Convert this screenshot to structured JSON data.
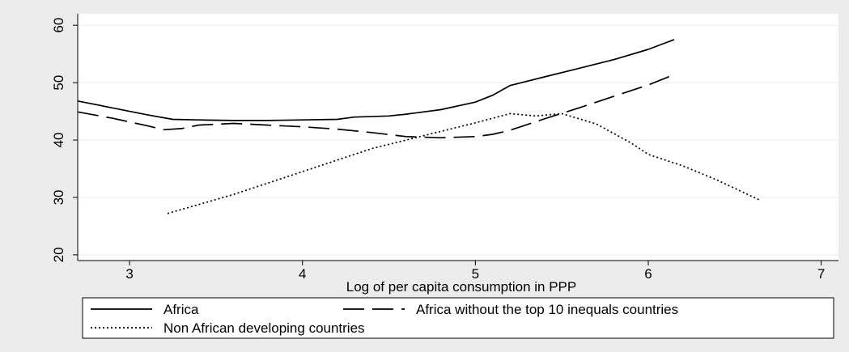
{
  "chart_data": {
    "type": "line",
    "title": "",
    "xlabel": "Log of per capita  consumption in PPP",
    "ylabel": "",
    "xlim": [
      2.7,
      7.1
    ],
    "ylim": [
      19,
      62
    ],
    "x_ticks": [
      3,
      4,
      5,
      6,
      7
    ],
    "y_ticks": [
      20,
      30,
      40,
      50,
      60
    ],
    "grid": "horizontal",
    "legend_position": "bottom",
    "series": [
      {
        "name": "Africa",
        "style": "solid",
        "color": "#000000",
        "points": [
          [
            2.7,
            46.8
          ],
          [
            2.9,
            45.6
          ],
          [
            3.1,
            44.4
          ],
          [
            3.25,
            43.6
          ],
          [
            3.4,
            43.5
          ],
          [
            3.6,
            43.4
          ],
          [
            3.8,
            43.4
          ],
          [
            4.0,
            43.5
          ],
          [
            4.2,
            43.6
          ],
          [
            4.3,
            44.0
          ],
          [
            4.5,
            44.2
          ],
          [
            4.6,
            44.5
          ],
          [
            4.8,
            45.3
          ],
          [
            5.0,
            46.6
          ],
          [
            5.1,
            47.8
          ],
          [
            5.2,
            49.5
          ],
          [
            5.4,
            51.0
          ],
          [
            5.6,
            52.5
          ],
          [
            5.8,
            54.0
          ],
          [
            6.0,
            55.8
          ],
          [
            6.15,
            57.5
          ]
        ]
      },
      {
        "name": "Africa without the top 10 inequals countries",
        "style": "long-dash",
        "color": "#000000",
        "points": [
          [
            2.7,
            44.9
          ],
          [
            2.9,
            43.8
          ],
          [
            3.1,
            42.5
          ],
          [
            3.2,
            41.8
          ],
          [
            3.3,
            42.0
          ],
          [
            3.4,
            42.6
          ],
          [
            3.6,
            42.9
          ],
          [
            3.8,
            42.6
          ],
          [
            4.0,
            42.3
          ],
          [
            4.2,
            41.9
          ],
          [
            4.4,
            41.3
          ],
          [
            4.6,
            40.6
          ],
          [
            4.8,
            40.4
          ],
          [
            5.0,
            40.6
          ],
          [
            5.1,
            41.0
          ],
          [
            5.2,
            41.7
          ],
          [
            5.4,
            43.7
          ],
          [
            5.6,
            45.6
          ],
          [
            5.8,
            47.6
          ],
          [
            6.0,
            49.6
          ],
          [
            6.15,
            51.4
          ]
        ]
      },
      {
        "name": "Non African developing countries",
        "style": "dotted",
        "color": "#000000",
        "points": [
          [
            3.22,
            27.2
          ],
          [
            3.6,
            30.5
          ],
          [
            4.0,
            34.5
          ],
          [
            4.4,
            38.5
          ],
          [
            4.8,
            41.5
          ],
          [
            5.0,
            43.0
          ],
          [
            5.2,
            44.6
          ],
          [
            5.35,
            44.2
          ],
          [
            5.5,
            44.6
          ],
          [
            5.7,
            42.8
          ],
          [
            5.9,
            39.5
          ],
          [
            6.0,
            37.5
          ],
          [
            6.2,
            35.5
          ],
          [
            6.4,
            33.0
          ],
          [
            6.64,
            29.6
          ]
        ]
      }
    ]
  }
}
